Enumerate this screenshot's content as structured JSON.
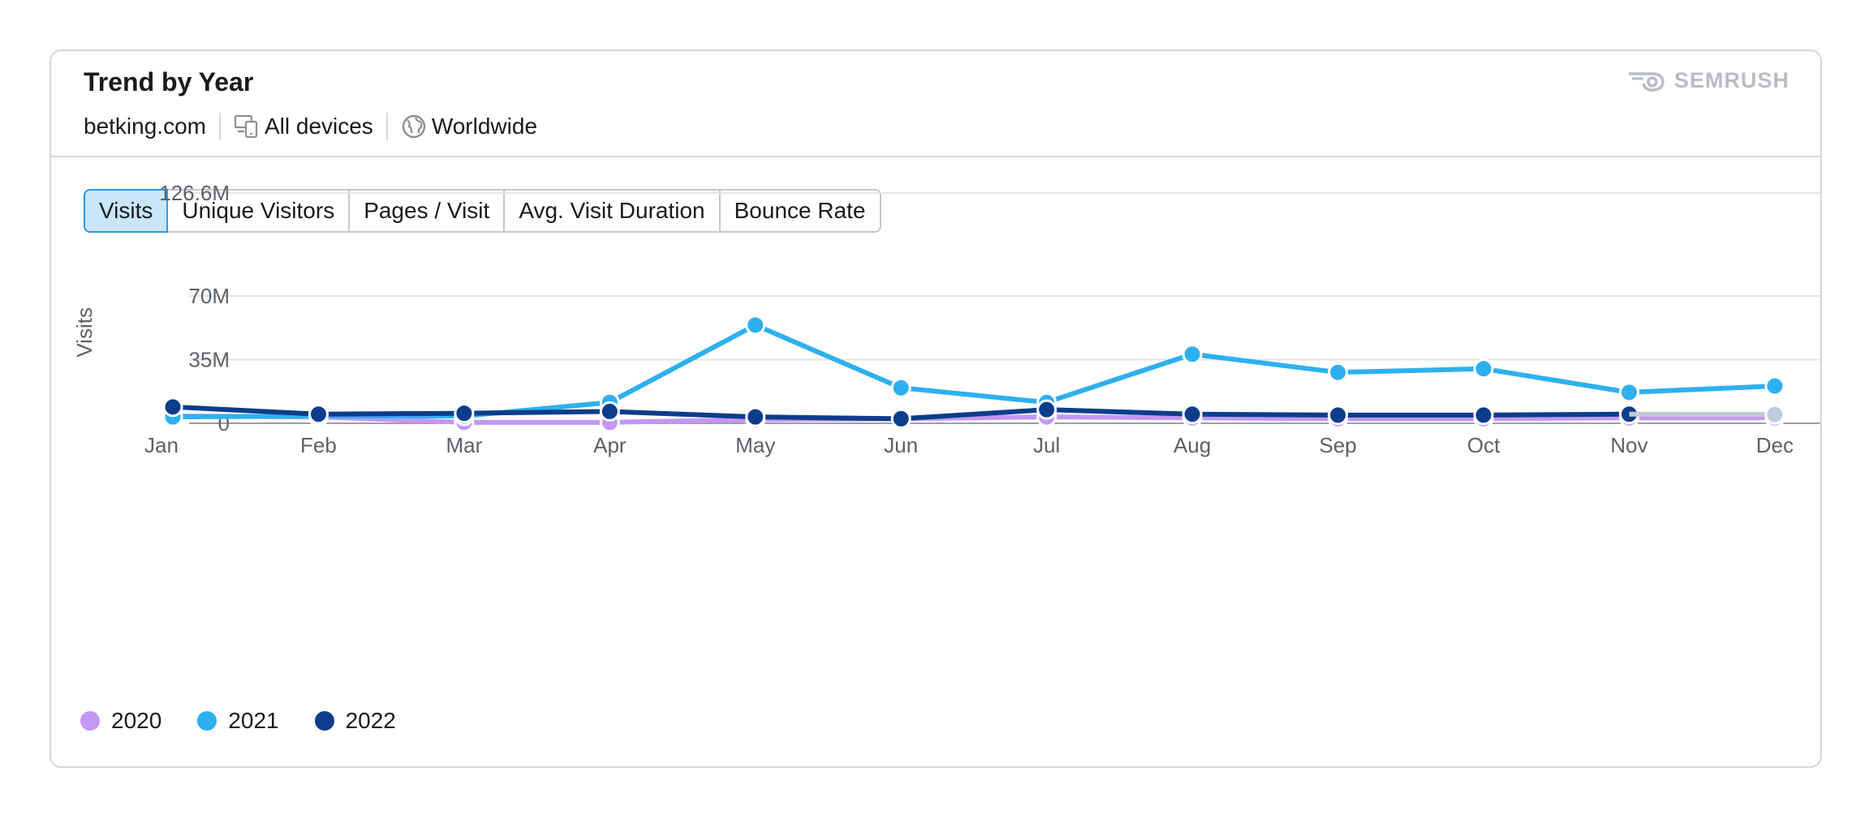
{
  "widget": {
    "title": "Trend by Year",
    "domain": "betking.com",
    "devices": "All devices",
    "region": "Worldwide",
    "brand": "SEMRUSH"
  },
  "tabs": [
    {
      "label": "Visits",
      "active": true
    },
    {
      "label": "Unique Visitors",
      "active": false
    },
    {
      "label": "Pages / Visit",
      "active": false
    },
    {
      "label": "Avg. Visit Duration",
      "active": false
    },
    {
      "label": "Bounce Rate",
      "active": false
    }
  ],
  "icons": {
    "devices": "devices-icon",
    "region": "globe-icon",
    "brand": "semrush-logo-icon"
  },
  "colors": {
    "2020": "#c397f5",
    "2021": "#2eb0f0",
    "2022": "#0b3d8c",
    "active_tab_bg": "#c9e6fb",
    "active_tab_border": "#2b9be0"
  },
  "chart_data": {
    "type": "line",
    "ylabel": "Visits",
    "categories": [
      "Jan",
      "Feb",
      "Mar",
      "Apr",
      "May",
      "Jun",
      "Jul",
      "Aug",
      "Sep",
      "Oct",
      "Nov",
      "Dec"
    ],
    "y_ticks": [
      {
        "value": 0,
        "label": "0"
      },
      {
        "value": 35000000,
        "label": "35M"
      },
      {
        "value": 70000000,
        "label": "70M"
      },
      {
        "value": 126600000,
        "label": "126.6M"
      }
    ],
    "ylim": [
      0,
      126600000
    ],
    "grid": true,
    "legend_position": "bottom-left",
    "series": [
      {
        "name": "2020",
        "values": [
          4000000,
          3500000,
          500000,
          500000,
          2000000,
          2500000,
          3500000,
          3000000,
          2500000,
          2500000,
          3000000,
          3000000
        ]
      },
      {
        "name": "2021",
        "values": [
          3500000,
          4000000,
          4000000,
          11500000,
          54000000,
          19500000,
          11500000,
          38000000,
          28000000,
          30000000,
          17000000,
          20500000
        ]
      },
      {
        "name": "2022",
        "values": [
          9000000,
          5000000,
          5500000,
          6500000,
          3500000,
          2500000,
          7500000,
          5000000,
          4500000,
          4500000,
          5000000,
          null
        ]
      }
    ],
    "projected_point": {
      "series": "2022",
      "category": "Dec",
      "value": 4800000
    }
  }
}
